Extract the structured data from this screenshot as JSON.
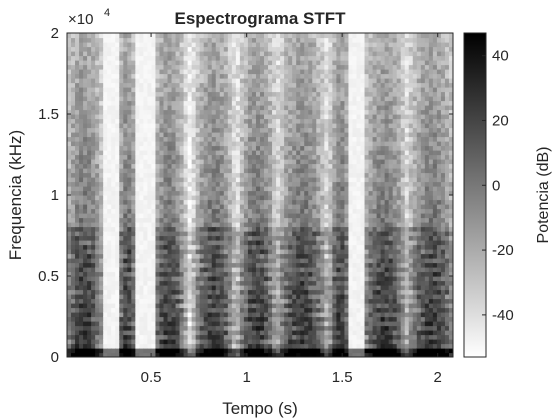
{
  "chart_data": {
    "type": "heatmap",
    "title": "Espectrograma STFT",
    "xlabel": "Tempo (s)",
    "ylabel": "Frequencia (kHz)",
    "xlim": [
      0.06,
      2.08
    ],
    "ylim": [
      0,
      20000
    ],
    "y_exponent_label": "×10",
    "y_exponent_power": "4",
    "xticks": [
      0.5,
      1,
      1.5,
      2
    ],
    "xtick_labels": [
      "0.5",
      "1",
      "1.5",
      "2"
    ],
    "yticks": [
      0,
      5000,
      10000,
      15000,
      20000
    ],
    "ytick_labels": [
      "0",
      "0.5",
      "1",
      "1.5",
      "2"
    ],
    "colormap": "gray (white = low, black = high)",
    "colorbar": {
      "label": "Potencia (dB)",
      "range": [
        -53,
        47
      ],
      "ticks": [
        -40,
        -20,
        0,
        20,
        40
      ],
      "tick_labels": [
        "-40",
        "-20",
        "0",
        "20",
        "40"
      ]
    },
    "silence_gaps_s": [
      [
        0.24,
        0.33
      ],
      [
        0.42,
        0.52
      ],
      [
        1.54,
        1.62
      ]
    ],
    "grid": false
  },
  "colors": {
    "axis": "#262626",
    "high": "#000000",
    "low": "#ffffff"
  }
}
